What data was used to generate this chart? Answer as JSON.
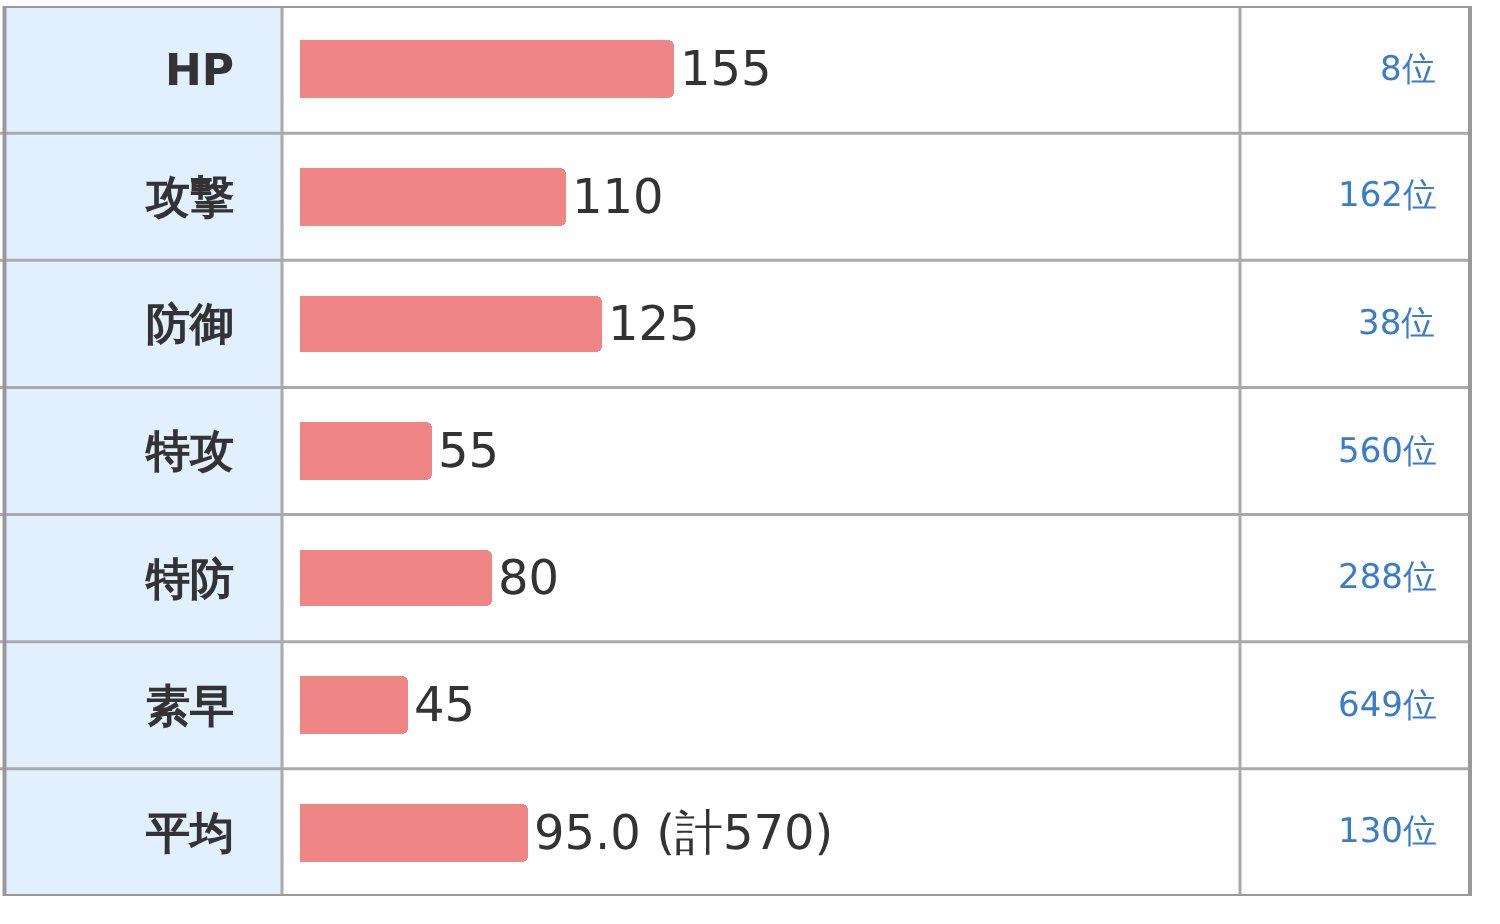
{
  "chart_data": {
    "type": "bar",
    "orientation": "horizontal",
    "categories": [
      "HP",
      "攻撃",
      "防御",
      "特攻",
      "特防",
      "素早",
      "平均"
    ],
    "values": [
      155,
      110,
      125,
      55,
      80,
      45,
      95.0
    ],
    "value_labels": [
      "155",
      "110",
      "125",
      "55",
      "80",
      "45",
      "95.0 (計570)"
    ],
    "color": "#ef8585",
    "xlim": [
      0,
      390
    ],
    "annotations": [
      "8位",
      "162位",
      "38位",
      "560位",
      "288位",
      "649位",
      "130位"
    ],
    "legend": false
  }
}
